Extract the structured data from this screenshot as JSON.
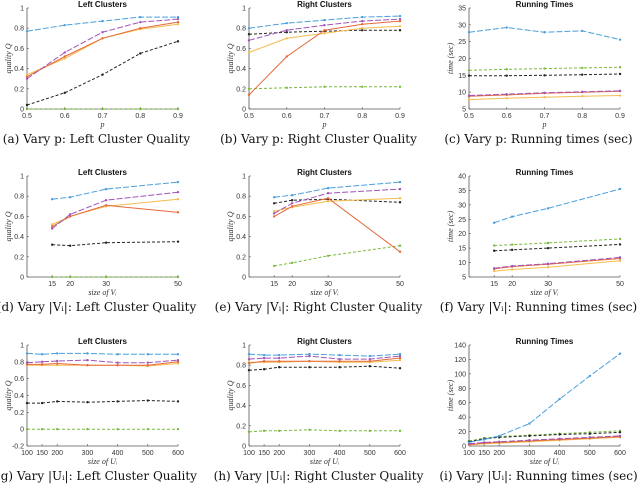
{
  "series_colors": [
    "#4a9fdc",
    "#a055b8",
    "#e5693c",
    "#f3bd4f",
    "#222222",
    "#7bb83c"
  ],
  "chart_data": [
    {
      "type": "line",
      "title": "Left Clusters",
      "xlabel": "p",
      "ylabel": "quality Q",
      "caption": "(a) Vary p: Left Cluster Quality",
      "x": [
        0.5,
        0.6,
        0.7,
        0.8,
        0.9
      ],
      "xlim": [
        0.5,
        0.9
      ],
      "xticks": [
        0.5,
        0.6,
        0.7,
        0.8,
        0.9
      ],
      "ylim": [
        0,
        1
      ],
      "yticks": [
        0,
        0.2,
        0.4,
        0.6,
        0.8,
        1
      ],
      "grid": false,
      "series": [
        {
          "values": [
            0.77,
            0.83,
            0.87,
            0.91,
            0.91
          ]
        },
        {
          "values": [
            0.3,
            0.56,
            0.76,
            0.86,
            0.89
          ]
        },
        {
          "values": [
            0.32,
            0.52,
            0.7,
            0.8,
            0.86
          ]
        },
        {
          "values": [
            0.34,
            0.5,
            0.7,
            0.79,
            0.84
          ]
        },
        {
          "values": [
            0.04,
            0.16,
            0.34,
            0.55,
            0.67
          ]
        },
        {
          "values": [
            0,
            0,
            0,
            0,
            0
          ]
        }
      ]
    },
    {
      "type": "line",
      "title": "Right Clusters",
      "xlabel": "p",
      "ylabel": "quality Q",
      "caption": "(b) Vary p: Right Cluster Quality",
      "x": [
        0.5,
        0.6,
        0.7,
        0.8,
        0.9
      ],
      "xlim": [
        0.5,
        0.9
      ],
      "xticks": [
        0.5,
        0.6,
        0.7,
        0.8,
        0.9
      ],
      "ylim": [
        0,
        1
      ],
      "yticks": [
        0,
        0.2,
        0.4,
        0.6,
        0.8,
        1
      ],
      "grid": false,
      "series": [
        {
          "values": [
            0.8,
            0.85,
            0.88,
            0.91,
            0.92
          ]
        },
        {
          "values": [
            0.68,
            0.78,
            0.83,
            0.87,
            0.89
          ]
        },
        {
          "values": [
            0.14,
            0.52,
            0.78,
            0.84,
            0.87
          ]
        },
        {
          "values": [
            0.56,
            0.7,
            0.75,
            0.8,
            0.82
          ]
        },
        {
          "values": [
            0.74,
            0.76,
            0.77,
            0.78,
            0.78
          ]
        },
        {
          "values": [
            0.2,
            0.21,
            0.22,
            0.22,
            0.22
          ]
        }
      ]
    },
    {
      "type": "line",
      "title": "Running Times",
      "xlabel": "p",
      "ylabel": "time (sec)",
      "caption": "(c) Vary p: Running times (sec)",
      "x": [
        0.5,
        0.6,
        0.7,
        0.8,
        0.9
      ],
      "xlim": [
        0.5,
        0.9
      ],
      "xticks": [
        0.5,
        0.6,
        0.7,
        0.8,
        0.9
      ],
      "ylim": [
        5,
        35
      ],
      "yticks": [
        5,
        10,
        15,
        20,
        25,
        30,
        35
      ],
      "grid": false,
      "series": [
        {
          "values": [
            27.8,
            29.2,
            27.8,
            28.2,
            25.6
          ]
        },
        {
          "values": [
            9.0,
            9.4,
            9.8,
            10.1,
            10.4
          ]
        },
        {
          "values": [
            8.8,
            9.2,
            9.7,
            10.0,
            10.3
          ]
        },
        {
          "values": [
            7.8,
            8.2,
            8.5,
            8.8,
            9.0
          ]
        },
        {
          "values": [
            14.9,
            14.9,
            15.0,
            15.2,
            15.4
          ]
        },
        {
          "values": [
            16.5,
            16.8,
            17.0,
            17.2,
            17.4
          ]
        }
      ]
    },
    {
      "type": "line",
      "title": "Left Clusters",
      "xlabel": "size of Vᵢ",
      "ylabel": "quality Q",
      "caption": "(d) Vary |Vᵢ|: Left Cluster Quality",
      "x": [
        15,
        20,
        30,
        50
      ],
      "xlim": [
        8,
        50
      ],
      "xticks": [
        15,
        20,
        30,
        50
      ],
      "ylim": [
        0,
        1
      ],
      "yticks": [
        0,
        0.2,
        0.4,
        0.6,
        0.8,
        1
      ],
      "grid": false,
      "series": [
        {
          "values": [
            0.77,
            0.79,
            0.87,
            0.94
          ]
        },
        {
          "values": [
            0.48,
            0.62,
            0.76,
            0.84
          ]
        },
        {
          "values": [
            0.5,
            0.6,
            0.71,
            0.64
          ]
        },
        {
          "values": [
            0.52,
            0.6,
            0.7,
            0.77
          ]
        },
        {
          "values": [
            0.32,
            0.31,
            0.34,
            0.35
          ]
        },
        {
          "values": [
            0,
            0,
            0,
            0
          ]
        }
      ]
    },
    {
      "type": "line",
      "title": "Right Clusters",
      "xlabel": "size of Vᵢ",
      "ylabel": "quality Q",
      "caption": "(e) Vary |Vᵢ|: Right Cluster Quality",
      "x": [
        15,
        20,
        30,
        50
      ],
      "xlim": [
        8,
        50
      ],
      "xticks": [
        15,
        20,
        30,
        50
      ],
      "ylim": [
        0,
        1
      ],
      "yticks": [
        0,
        0.2,
        0.4,
        0.6,
        0.8,
        1
      ],
      "grid": false,
      "series": [
        {
          "values": [
            0.79,
            0.81,
            0.88,
            0.94
          ]
        },
        {
          "values": [
            0.63,
            0.73,
            0.83,
            0.87
          ]
        },
        {
          "values": [
            0.6,
            0.7,
            0.78,
            0.25
          ]
        },
        {
          "values": [
            0.65,
            0.69,
            0.75,
            0.78
          ]
        },
        {
          "values": [
            0.73,
            0.76,
            0.77,
            0.74
          ]
        },
        {
          "values": [
            0.11,
            0.14,
            0.21,
            0.31
          ]
        }
      ]
    },
    {
      "type": "line",
      "title": "Running Times",
      "xlabel": "size of Vᵢ",
      "ylabel": "time (sec)",
      "caption": "(f) Vary |Vᵢ|: Running times (sec)",
      "x": [
        15,
        20,
        30,
        50
      ],
      "xlim": [
        8,
        50
      ],
      "xticks": [
        15,
        20,
        30,
        50
      ],
      "ylim": [
        5,
        40
      ],
      "yticks": [
        5,
        10,
        15,
        20,
        25,
        30,
        35,
        40
      ],
      "grid": false,
      "series": [
        {
          "values": [
            23.8,
            25.9,
            28.8,
            35.5
          ]
        },
        {
          "values": [
            8.0,
            8.8,
            9.6,
            11.8
          ]
        },
        {
          "values": [
            7.8,
            8.6,
            9.4,
            11.4
          ]
        },
        {
          "values": [
            7.0,
            7.6,
            8.4,
            10.6
          ]
        },
        {
          "values": [
            14.1,
            14.4,
            15.0,
            16.3
          ]
        },
        {
          "values": [
            15.9,
            16.2,
            16.8,
            18.2
          ]
        }
      ]
    },
    {
      "type": "line",
      "title": "Left Clusters",
      "xlabel": "size of Uᵢ",
      "ylabel": "quality Q",
      "caption": "(g) Vary |Uᵢ|: Left Cluster Quality",
      "x": [
        100,
        150,
        200,
        300,
        400,
        500,
        600
      ],
      "xlim": [
        100,
        600
      ],
      "xticks": [
        100,
        150,
        200,
        300,
        400,
        500,
        600
      ],
      "ylim": [
        -0.2,
        1
      ],
      "yticks": [
        -0.2,
        0,
        0.2,
        0.4,
        0.6,
        0.8,
        1
      ],
      "grid": false,
      "series": [
        {
          "values": [
            0.9,
            0.89,
            0.9,
            0.9,
            0.89,
            0.89,
            0.89
          ]
        },
        {
          "values": [
            0.79,
            0.8,
            0.81,
            0.82,
            0.79,
            0.79,
            0.82
          ]
        },
        {
          "values": [
            0.77,
            0.77,
            0.78,
            0.76,
            0.76,
            0.76,
            0.8
          ]
        },
        {
          "values": [
            0.76,
            0.76,
            0.76,
            0.76,
            0.76,
            0.75,
            0.78
          ]
        },
        {
          "values": [
            0.31,
            0.31,
            0.33,
            0.32,
            0.33,
            0.34,
            0.33
          ]
        },
        {
          "values": [
            0,
            0,
            0,
            0,
            0,
            0,
            0
          ]
        }
      ]
    },
    {
      "type": "line",
      "title": "Right Clusters",
      "xlabel": "size of Uᵢ",
      "ylabel": "quality Q",
      "caption": "(h) Vary |Uᵢ|: Right Cluster Quality",
      "x": [
        100,
        150,
        200,
        300,
        400,
        500,
        600
      ],
      "xlim": [
        100,
        600
      ],
      "xticks": [
        100,
        150,
        200,
        300,
        400,
        500,
        600
      ],
      "ylim": [
        0,
        1
      ],
      "yticks": [
        0,
        0.2,
        0.4,
        0.6,
        0.8,
        1
      ],
      "grid": false,
      "series": [
        {
          "values": [
            0.91,
            0.9,
            0.9,
            0.91,
            0.9,
            0.89,
            0.91
          ]
        },
        {
          "values": [
            0.86,
            0.87,
            0.87,
            0.89,
            0.86,
            0.86,
            0.89
          ]
        },
        {
          "values": [
            0.82,
            0.84,
            0.84,
            0.84,
            0.84,
            0.84,
            0.87
          ]
        },
        {
          "values": [
            0.83,
            0.83,
            0.83,
            0.84,
            0.83,
            0.83,
            0.85
          ]
        },
        {
          "values": [
            0.75,
            0.76,
            0.78,
            0.78,
            0.78,
            0.79,
            0.77
          ]
        },
        {
          "values": [
            0.14,
            0.15,
            0.15,
            0.16,
            0.15,
            0.15,
            0.15
          ]
        }
      ]
    },
    {
      "type": "line",
      "title": "Running Times",
      "xlabel": "size of Uᵢ",
      "ylabel": "time (sec)",
      "caption": "(i) Vary |Uᵢ|: Running times (sec)",
      "x": [
        100,
        150,
        200,
        300,
        400,
        500,
        600
      ],
      "xlim": [
        100,
        600
      ],
      "xticks": [
        100,
        150,
        200,
        300,
        400,
        500,
        600
      ],
      "ylim": [
        0,
        140
      ],
      "yticks": [
        0,
        20,
        40,
        60,
        80,
        100,
        120,
        140
      ],
      "grid": false,
      "series": [
        {
          "values": [
            5,
            9,
            14,
            31,
            65,
            97,
            128
          ]
        },
        {
          "values": [
            3,
            5,
            6,
            8,
            10,
            12,
            14
          ]
        },
        {
          "values": [
            2,
            4,
            5,
            7,
            9,
            11,
            13
          ]
        },
        {
          "values": [
            1.5,
            3,
            4,
            6,
            8,
            10,
            12
          ]
        },
        {
          "values": [
            6,
            10,
            12,
            14,
            16,
            17,
            19
          ]
        },
        {
          "values": [
            7,
            11,
            13,
            15,
            17,
            19,
            21
          ]
        }
      ]
    }
  ]
}
